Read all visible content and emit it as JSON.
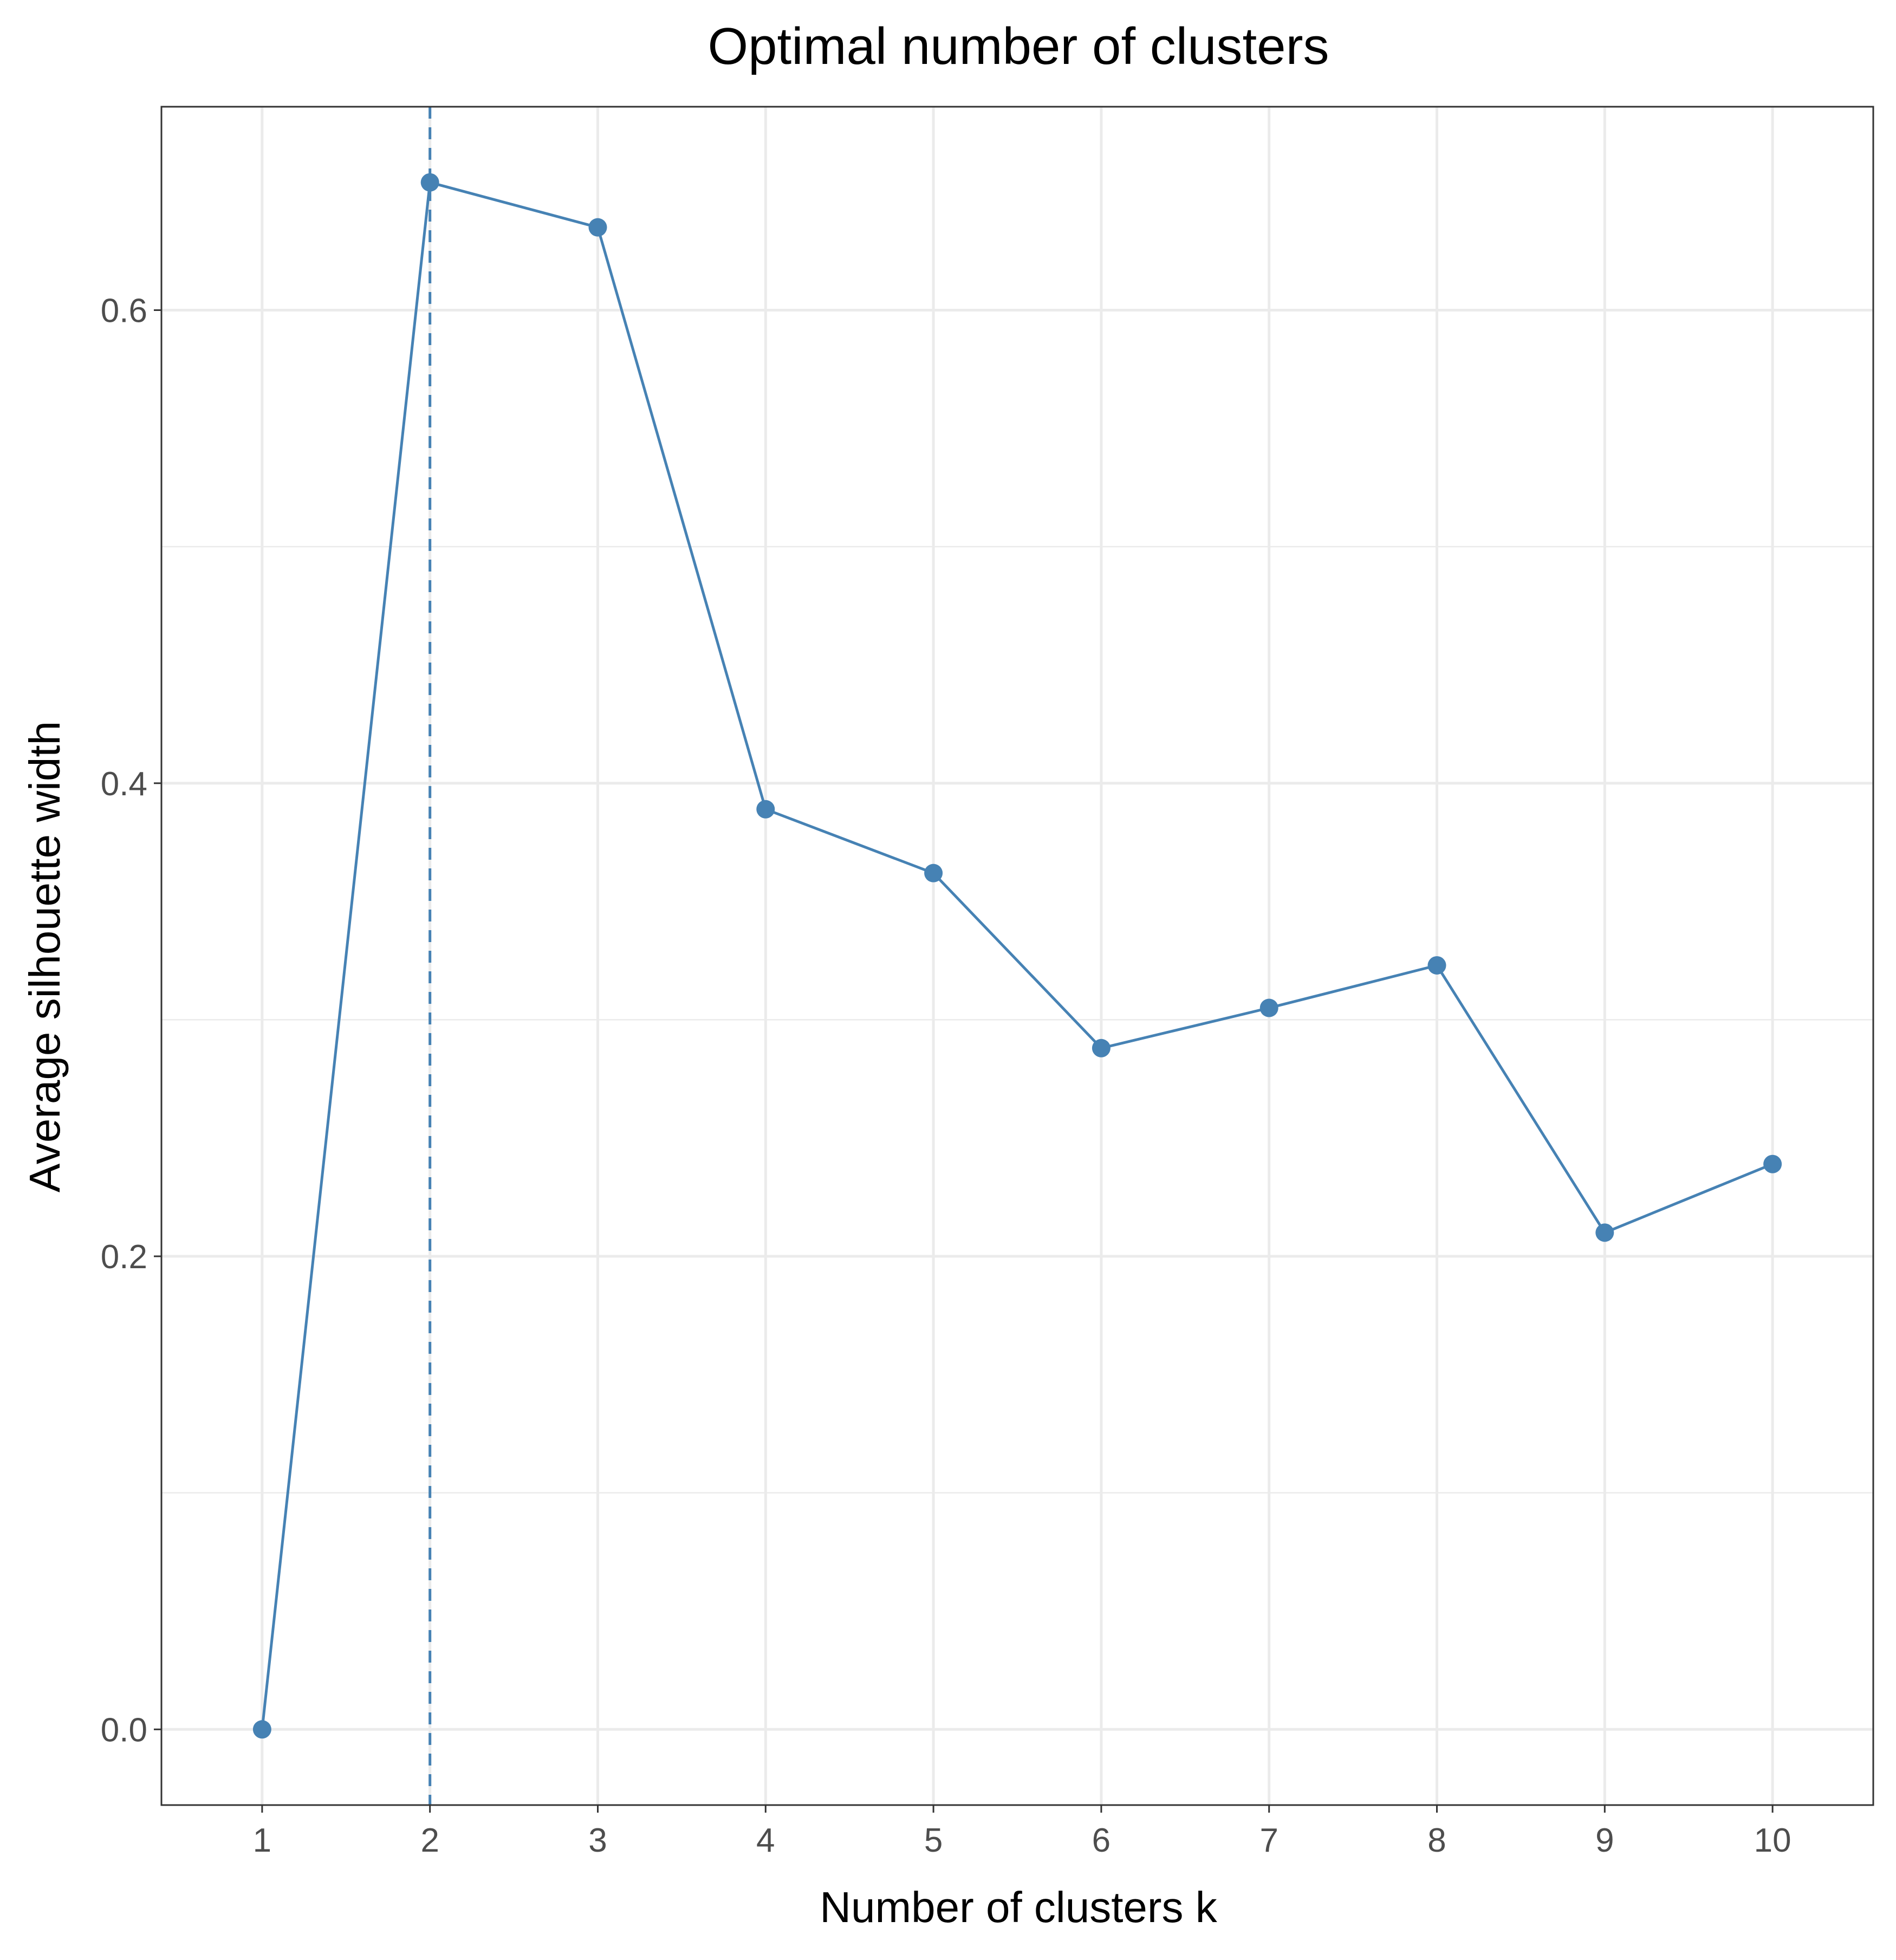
{
  "chart_data": {
    "type": "line",
    "title": "Optimal number of clusters",
    "xlabel": "Number of clusters k",
    "ylabel": "Average silhouette width",
    "x": [
      1,
      2,
      3,
      4,
      5,
      6,
      7,
      8,
      9,
      10
    ],
    "x_tick_labels": [
      "1",
      "2",
      "3",
      "4",
      "5",
      "6",
      "7",
      "8",
      "9",
      "10"
    ],
    "series": [
      {
        "values": [
          0.0,
          0.654,
          0.635,
          0.389,
          0.362,
          0.288,
          0.305,
          0.323,
          0.21,
          0.239
        ]
      }
    ],
    "xlim": [
      0.4,
      10.6
    ],
    "ylim": [
      -0.032,
      0.686
    ],
    "y_ticks": [
      0.0,
      0.2,
      0.4,
      0.6
    ],
    "y_tick_labels": [
      "0.0",
      "0.2",
      "0.4",
      "0.6"
    ],
    "y_minor_ticks": [
      0.1,
      0.3,
      0.5
    ],
    "optimal_k": 2,
    "grid": true,
    "legend": "none",
    "colors": {
      "series": "#4682B4",
      "grid": "#ebebeb",
      "panel_border": "#333333",
      "tick_label": "#4d4d4d"
    }
  }
}
